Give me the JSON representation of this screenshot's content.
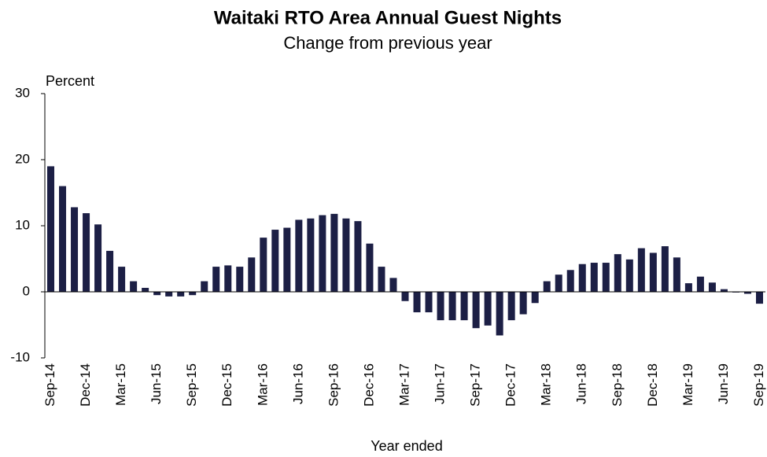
{
  "chart_data": {
    "type": "bar",
    "title": "Waitaki RTO Area Annual Guest Nights",
    "subtitle": "Change from previous year",
    "y_label": "Percent",
    "x_label": "Year ended",
    "color": "#1c1f45",
    "categories": [
      "Sep-14",
      null,
      null,
      "Dec-14",
      null,
      null,
      "Mar-15",
      null,
      null,
      "Jun-15",
      null,
      null,
      "Sep-15",
      null,
      null,
      "Dec-15",
      null,
      null,
      "Mar-16",
      null,
      null,
      "Jun-16",
      null,
      null,
      "Sep-16",
      null,
      null,
      "Dec-16",
      null,
      null,
      "Mar-17",
      null,
      null,
      "Jun-17",
      null,
      null,
      "Sep-17",
      null,
      null,
      "Dec-17",
      null,
      null,
      "Mar-18",
      null,
      null,
      "Jun-18",
      null,
      null,
      "Sep-18",
      null,
      null,
      "Dec-18",
      null,
      null,
      "Mar-19",
      null,
      null,
      "Jun-19",
      null,
      null,
      "Sep-19"
    ],
    "values": [
      19,
      16,
      12.8,
      11.9,
      10.2,
      6.2,
      3.8,
      1.6,
      0.6,
      -0.5,
      -0.7,
      -0.7,
      -0.5,
      1.6,
      3.8,
      4.0,
      3.8,
      5.2,
      8.2,
      9.4,
      9.7,
      10.9,
      11.1,
      11.6,
      11.8,
      11.1,
      10.7,
      7.3,
      3.8,
      2.1,
      -1.4,
      -3.1,
      -3.1,
      -4.3,
      -4.3,
      -4.3,
      -5.5,
      -5.1,
      -6.6,
      -4.3,
      -3.4,
      -1.7,
      1.6,
      2.6,
      3.3,
      4.2,
      4.4,
      4.4,
      5.7,
      4.9,
      6.6,
      5.9,
      6.9,
      5.2,
      1.3,
      2.3,
      1.4,
      0.4,
      -0.1,
      -0.3,
      -1.8
    ],
    "ylim": [
      -10,
      30
    ],
    "yticks": [
      -10,
      0,
      10,
      20,
      30
    ],
    "grid": false
  }
}
